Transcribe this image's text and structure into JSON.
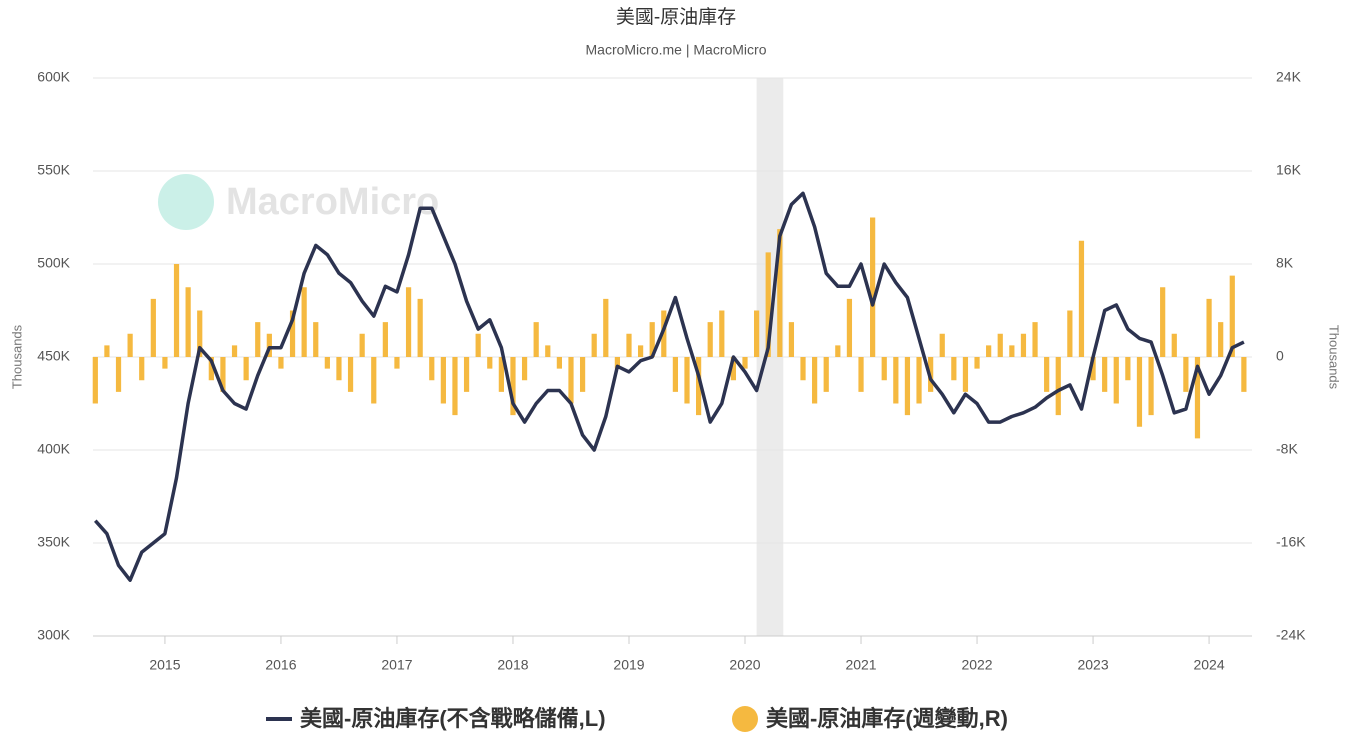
{
  "chart_data": {
    "type": "bar_line",
    "title": "美國-原油庫存",
    "subtitle": "MacroMicro.me | MacroMicro",
    "watermark": "MacroMicro",
    "ylabel": "Thousands",
    "y2label": "Thousands",
    "xlim": [
      2014.38,
      2024.37
    ],
    "xticks": [
      2015,
      2016,
      2017,
      2018,
      2019,
      2020,
      2021,
      2022,
      2023,
      2024
    ],
    "ylim": [
      300000,
      600000
    ],
    "yticks": [
      {
        "value": 300000,
        "label": "300K"
      },
      {
        "value": 350000,
        "label": "350K"
      },
      {
        "value": 400000,
        "label": "400K"
      },
      {
        "value": 450000,
        "label": "450K"
      },
      {
        "value": 500000,
        "label": "500K"
      },
      {
        "value": 550000,
        "label": "550K"
      },
      {
        "value": 600000,
        "label": "600K"
      }
    ],
    "y2lim": [
      -24000,
      24000
    ],
    "y2ticks": [
      {
        "value": -24000,
        "label": "-24K"
      },
      {
        "value": -16000,
        "label": "-16K"
      },
      {
        "value": -8000,
        "label": "-8K"
      },
      0,
      {
        "value": 8000,
        "label": "8K"
      },
      {
        "value": 16000,
        "label": "16K"
      },
      {
        "value": 24000,
        "label": "24K"
      }
    ],
    "grid": true,
    "shaded_region": [
      2020.1,
      2020.33
    ],
    "x": [
      2014.4,
      2014.5,
      2014.6,
      2014.7,
      2014.8,
      2014.9,
      2015.0,
      2015.1,
      2015.2,
      2015.3,
      2015.4,
      2015.5,
      2015.6,
      2015.7,
      2015.8,
      2015.9,
      2016.0,
      2016.1,
      2016.2,
      2016.3,
      2016.4,
      2016.5,
      2016.6,
      2016.7,
      2016.8,
      2016.9,
      2017.0,
      2017.1,
      2017.2,
      2017.3,
      2017.4,
      2017.5,
      2017.6,
      2017.7,
      2017.8,
      2017.9,
      2018.0,
      2018.1,
      2018.2,
      2018.3,
      2018.4,
      2018.5,
      2018.6,
      2018.7,
      2018.8,
      2018.9,
      2019.0,
      2019.1,
      2019.2,
      2019.3,
      2019.4,
      2019.5,
      2019.6,
      2019.7,
      2019.8,
      2019.9,
      2020.0,
      2020.1,
      2020.2,
      2020.3,
      2020.4,
      2020.5,
      2020.6,
      2020.7,
      2020.8,
      2020.9,
      2021.0,
      2021.1,
      2021.2,
      2021.3,
      2021.4,
      2021.5,
      2021.6,
      2021.7,
      2021.8,
      2021.9,
      2022.0,
      2022.1,
      2022.2,
      2022.3,
      2022.4,
      2022.5,
      2022.6,
      2022.7,
      2022.8,
      2022.9,
      2023.0,
      2023.1,
      2023.2,
      2023.3,
      2023.4,
      2023.5,
      2023.6,
      2023.7,
      2023.8,
      2023.9,
      2024.0,
      2024.1,
      2024.2,
      2024.3
    ],
    "series": [
      {
        "name": "美國-原油庫存(不含戰略儲備,L)",
        "color": "#2c3350",
        "kind": "line",
        "axis": "y",
        "values": [
          362000,
          355000,
          338000,
          330000,
          345000,
          350000,
          355000,
          385000,
          425000,
          455000,
          448000,
          432000,
          425000,
          422000,
          440000,
          455000,
          455000,
          470000,
          495000,
          510000,
          505000,
          495000,
          490000,
          480000,
          472000,
          488000,
          485000,
          505000,
          530000,
          530000,
          515000,
          500000,
          480000,
          465000,
          470000,
          455000,
          425000,
          415000,
          425000,
          432000,
          432000,
          425000,
          408000,
          400000,
          418000,
          445000,
          442000,
          448000,
          450000,
          465000,
          482000,
          460000,
          440000,
          415000,
          425000,
          450000,
          442000,
          432000,
          455000,
          515000,
          532000,
          538000,
          520000,
          495000,
          488000,
          488000,
          500000,
          478000,
          500000,
          490000,
          482000,
          460000,
          438000,
          430000,
          420000,
          430000,
          425000,
          415000,
          415000,
          418000,
          420000,
          423000,
          428000,
          432000,
          435000,
          422000,
          450000,
          475000,
          478000,
          465000,
          460000,
          458000,
          440000,
          420000,
          422000,
          445000,
          430000,
          440000,
          455000,
          458000
        ]
      },
      {
        "name": "美國-原油庫存(週變動,R)",
        "color": "#f5b940",
        "kind": "bar",
        "axis": "y2",
        "values": [
          -4000,
          1000,
          -3000,
          2000,
          -2000,
          5000,
          -1000,
          8000,
          6000,
          4000,
          -2000,
          -3000,
          1000,
          -2000,
          3000,
          2000,
          -1000,
          4000,
          6000,
          3000,
          -1000,
          -2000,
          -3000,
          2000,
          -4000,
          3000,
          -1000,
          6000,
          5000,
          -2000,
          -4000,
          -5000,
          -3000,
          2000,
          -1000,
          -3000,
          -5000,
          -2000,
          3000,
          1000,
          -1000,
          -4000,
          -3000,
          2000,
          5000,
          -1000,
          2000,
          1000,
          3000,
          4000,
          -3000,
          -4000,
          -5000,
          3000,
          4000,
          -2000,
          -1000,
          4000,
          9000,
          11000,
          3000,
          -2000,
          -4000,
          -3000,
          1000,
          5000,
          -3000,
          12000,
          -2000,
          -4000,
          -5000,
          -4000,
          -3000,
          2000,
          -2000,
          -3000,
          -1000,
          1000,
          2000,
          1000,
          2000,
          3000,
          -3000,
          -5000,
          4000,
          10000,
          -2000,
          -3000,
          -4000,
          -2000,
          -6000,
          -5000,
          6000,
          2000,
          -3000,
          -7000,
          5000,
          3000,
          7000,
          -3000
        ]
      }
    ]
  }
}
